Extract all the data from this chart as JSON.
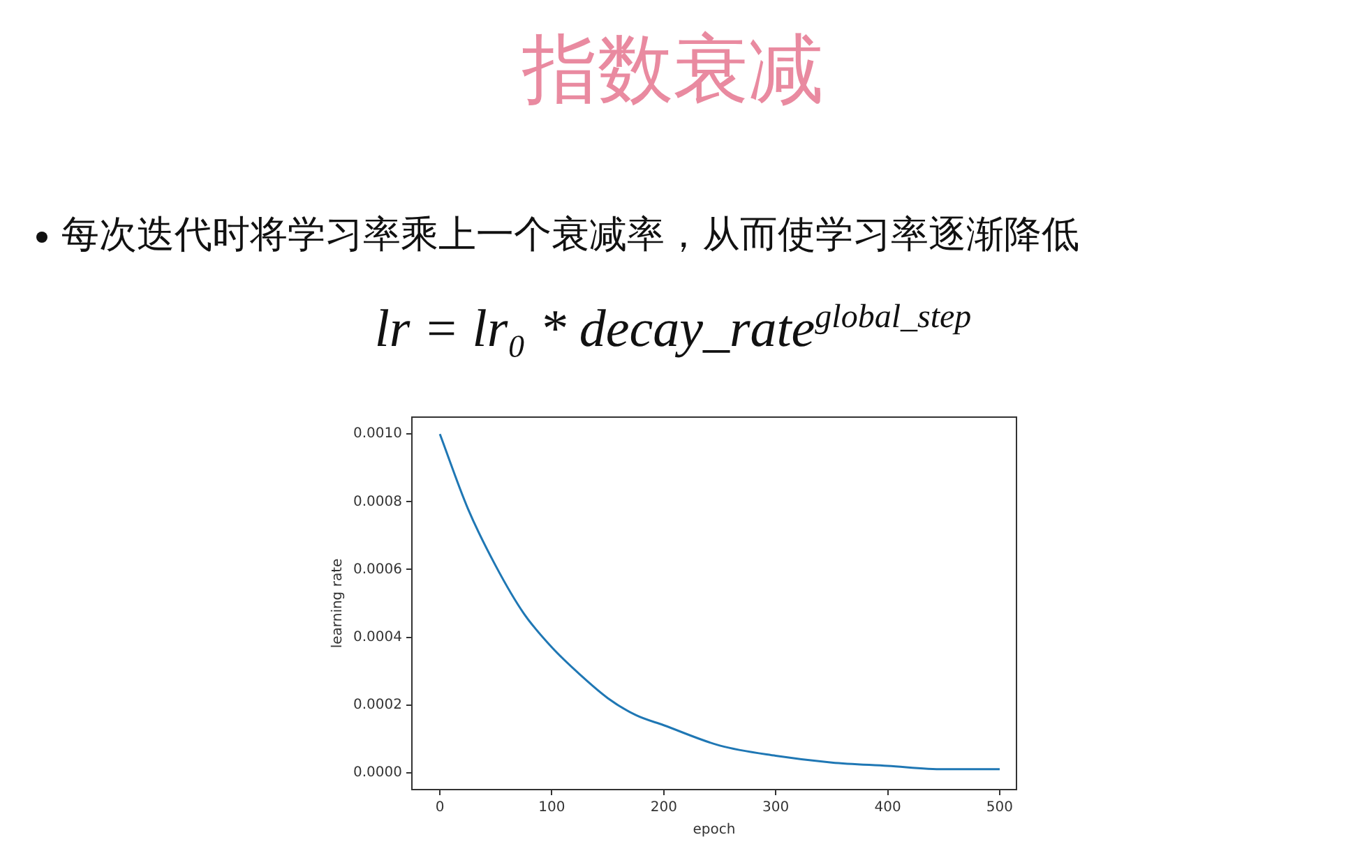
{
  "chart_data": {
    "type": "line",
    "title": "指数衰减",
    "subtitle": "每次迭代时将学习率乘上一个衰减率，从而使学习率逐渐降低",
    "annotations": [
      "lr = lr₀ * decay_rate$^{global_step}$"
    ],
    "xlabel": "epoch",
    "ylabel": "learning rate",
    "x": [
      0,
      25,
      50,
      75,
      100,
      125,
      150,
      175,
      200,
      250,
      300,
      350,
      400,
      450,
      500
    ],
    "series": [
      {
        "color": "#1f77b4",
        "values": [
          0.001,
          0.00078,
          0.00061,
          0.00047,
          0.00037,
          0.00029,
          0.00022,
          0.00017,
          0.00014,
          8e-05,
          5e-05,
          3e-05,
          2e-05,
          1e-05,
          1e-05
        ]
      }
    ],
    "xlim": [
      -25,
      515
    ],
    "xticks": [
      0,
      100,
      200,
      300,
      400,
      500
    ],
    "ylim": [
      -5e-05,
      0.00105
    ],
    "yticks": [
      {
        "value": 0,
        "label": "0.0000"
      },
      {
        "value": 0.0002,
        "label": "0.0002"
      },
      {
        "value": 0.0004,
        "label": "0.0004"
      },
      {
        "value": 0.0006,
        "label": "0.0006"
      },
      {
        "value": 0.0008,
        "label": "0.0008"
      },
      {
        "value": 0.001,
        "label": "0.0010"
      }
    ],
    "grid": false,
    "legend": false,
    "marker": "none",
    "line_style": "solid"
  }
}
